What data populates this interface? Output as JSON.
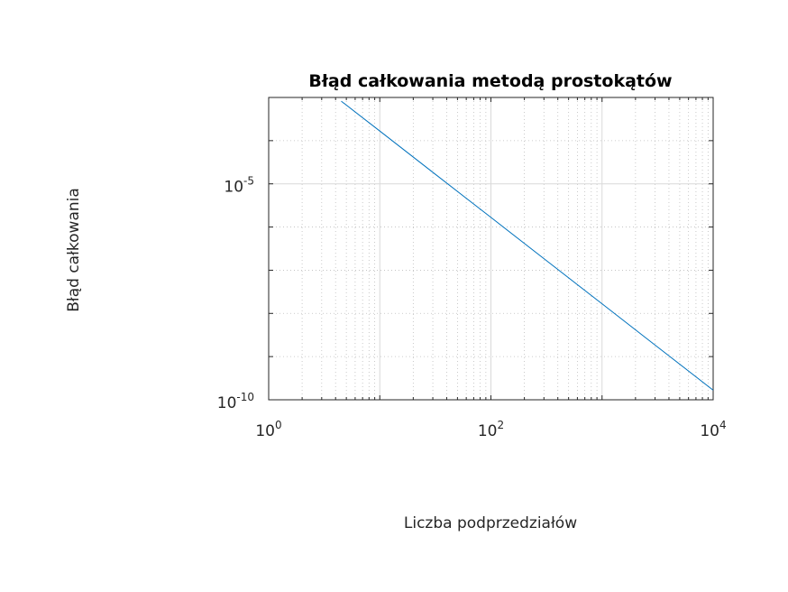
{
  "chart_data": {
    "type": "line",
    "title": "Błąd całkowania metodą prostokątów",
    "xlabel": "Liczba podprzedziałów",
    "ylabel": "Błąd całkowania",
    "xscale": "log",
    "yscale": "log",
    "xlim": [
      1,
      10000
    ],
    "ylim": [
      1e-10,
      0.001
    ],
    "x_ticks": [
      {
        "base": "10",
        "exp": "0",
        "value": 1
      },
      {
        "base": "10",
        "exp": "2",
        "value": 100
      },
      {
        "base": "10",
        "exp": "4",
        "value": 10000
      }
    ],
    "y_ticks": [
      {
        "base": "10",
        "exp": "-5",
        "value": 1e-05
      },
      {
        "base": "10",
        "exp": "-10",
        "value": 1e-10
      }
    ],
    "grid": true,
    "series": [
      {
        "color": "#0072bd",
        "x": [
          4.5,
          10,
          30,
          100,
          300,
          1000,
          3000,
          10000
        ],
        "y": [
          0.00082,
          0.000167,
          1.85e-05,
          1.67e-06,
          1.85e-07,
          1.67e-08,
          1.85e-09,
          1.67e-10
        ]
      }
    ]
  }
}
